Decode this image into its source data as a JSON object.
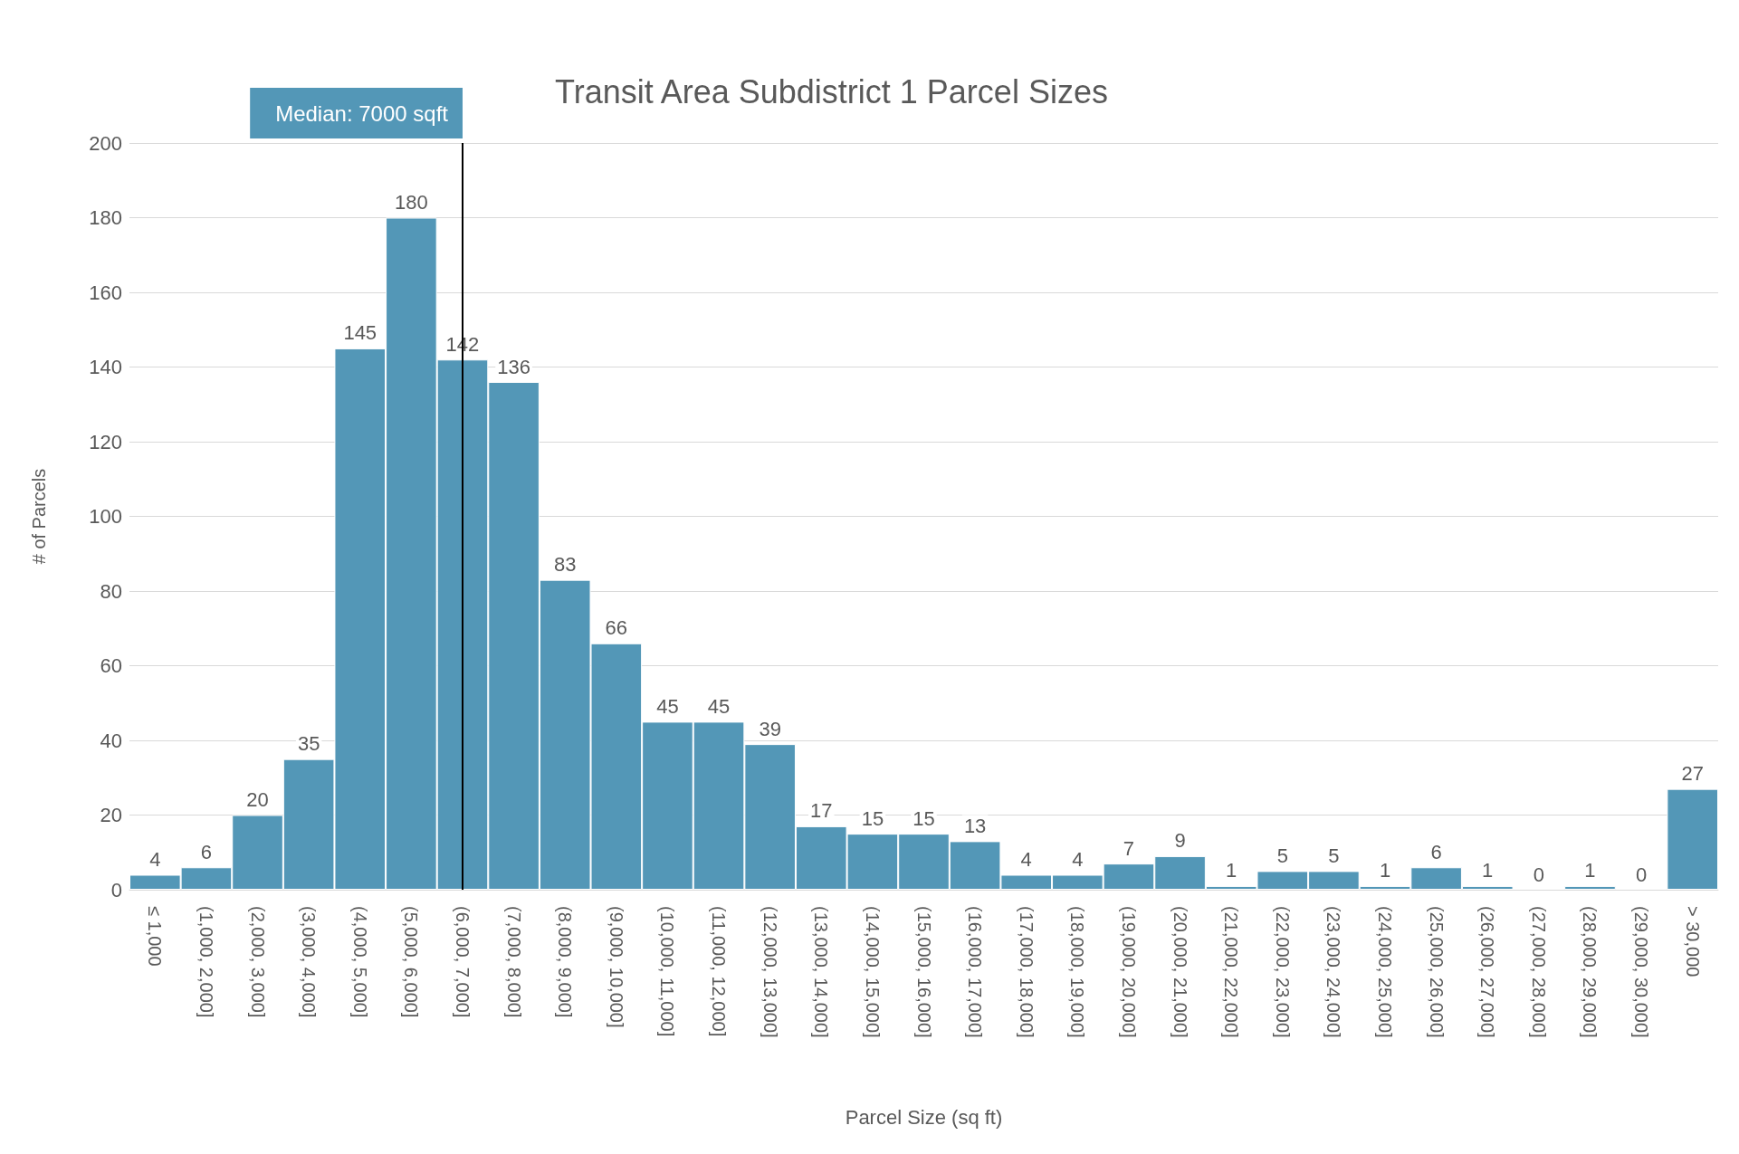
{
  "chart_data": {
    "type": "bar",
    "title": "Transit Area Subdistrict 1 Parcel Sizes",
    "xlabel": "Parcel Size (sq ft)",
    "ylabel": "# of Parcels",
    "categories": [
      "≤ 1,000",
      "(1,000, 2,000]",
      "(2,000, 3,000]",
      "(3,000, 4,000]",
      "(4,000, 5,000]",
      "(5,000, 6,000]",
      "(6,000, 7,000]",
      "(7,000, 8,000]",
      "(8,000, 9,000]",
      "(9,000, 10,000]",
      "(10,000, 11,000]",
      "(11,000, 12,000]",
      "(12,000, 13,000]",
      "(13,000, 14,000]",
      "(14,000, 15,000]",
      "(15,000, 16,000]",
      "(16,000, 17,000]",
      "(17,000, 18,000]",
      "(18,000, 19,000]",
      "(19,000, 20,000]",
      "(20,000, 21,000]",
      "(21,000, 22,000]",
      "(22,000, 23,000]",
      "(23,000, 24,000]",
      "(24,000, 25,000]",
      "(25,000, 26,000]",
      "(26,000, 27,000]",
      "(27,000, 28,000]",
      "(28,000, 29,000]",
      "(29,000, 30,000]",
      "> 30,000"
    ],
    "values": [
      4,
      6,
      20,
      35,
      145,
      180,
      142,
      136,
      83,
      66,
      45,
      45,
      39,
      17,
      15,
      15,
      13,
      4,
      4,
      7,
      9,
      1,
      5,
      5,
      1,
      6,
      1,
      0,
      1,
      0,
      27
    ],
    "color": "#5397b7",
    "ylim": [
      0,
      200
    ],
    "yticks": [
      0,
      20,
      40,
      60,
      80,
      100,
      120,
      140,
      160,
      180,
      200
    ],
    "grid": "y",
    "data_labels": true,
    "ref_lines": [
      {
        "axis": "x",
        "value": "(6,000, 7,000]",
        "label": "Median: 7000 sqft",
        "color": "#000000"
      }
    ]
  }
}
